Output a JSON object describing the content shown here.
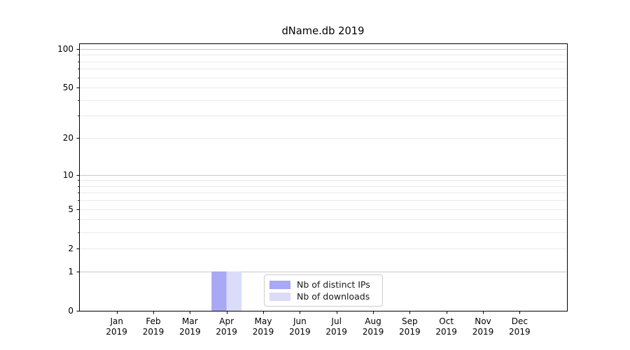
{
  "chart_data": {
    "type": "bar",
    "title": "dName.db 2019",
    "year": "2019",
    "categories": [
      "Jan",
      "Feb",
      "Mar",
      "Apr",
      "May",
      "Jun",
      "Jul",
      "Aug",
      "Sep",
      "Oct",
      "Nov",
      "Dec"
    ],
    "series": [
      {
        "name": "Nb of distinct IPs",
        "color": "#a8a8f4",
        "values": [
          0,
          0,
          0,
          1,
          0,
          0,
          0,
          0,
          0,
          0,
          0,
          0
        ]
      },
      {
        "name": "Nb of downloads",
        "color": "#dbdbfa",
        "values": [
          0,
          0,
          0,
          1,
          0,
          0,
          0,
          0,
          0,
          0,
          0,
          0
        ]
      }
    ],
    "yscale": "log1p",
    "ylim": [
      0,
      110
    ],
    "y_tick_labels": [
      0,
      1,
      2,
      5,
      10,
      20,
      50,
      100
    ],
    "y_major_gridlines": [
      1,
      10,
      100
    ],
    "y_minor_gridlines": [
      2,
      3,
      4,
      5,
      6,
      7,
      8,
      9,
      20,
      30,
      40,
      50,
      60,
      70,
      80,
      90
    ],
    "grid": {
      "major_color": "#c8c8c8",
      "minor_color": "#ebebeb"
    },
    "axes_color": "#000000",
    "legend": {
      "location": "lower center",
      "entries": [
        "Nb of distinct IPs",
        "Nb of downloads"
      ]
    }
  }
}
